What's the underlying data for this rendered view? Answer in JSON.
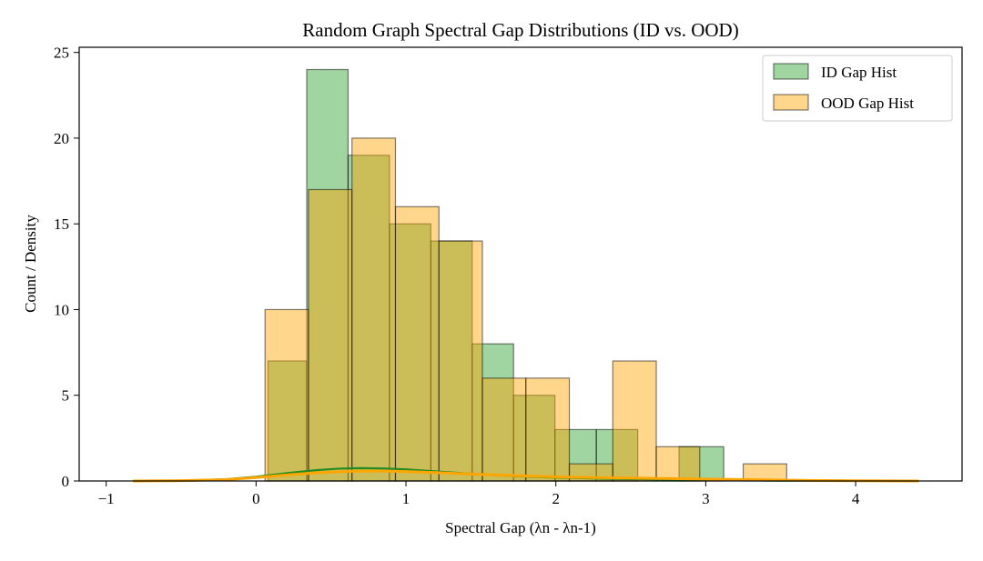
{
  "chart_data": {
    "type": "histogram",
    "title": "Random Graph Spectral Gap Distributions (ID vs. OOD)",
    "xlabel": "Spectral Gap (λn - λn-1)",
    "ylabel": "Count / Density",
    "xlim": [
      -1.18,
      4.71
    ],
    "ylim": [
      0,
      25.3
    ],
    "xticks": [
      -1,
      0,
      1,
      2,
      3,
      4
    ],
    "yticks": [
      0,
      5,
      10,
      15,
      20,
      25
    ],
    "legend_position": "top-right",
    "series": [
      {
        "name": "ID Gap Hist",
        "color": "#2ca02c",
        "bins": [
          {
            "x0": 0.08,
            "x1": 0.338,
            "count": 7
          },
          {
            "x0": 0.338,
            "x1": 0.614,
            "count": 24
          },
          {
            "x0": 0.614,
            "x1": 0.89,
            "count": 19
          },
          {
            "x0": 0.89,
            "x1": 1.166,
            "count": 15
          },
          {
            "x0": 1.166,
            "x1": 1.442,
            "count": 14
          },
          {
            "x0": 1.442,
            "x1": 1.718,
            "count": 8
          },
          {
            "x0": 1.718,
            "x1": 1.994,
            "count": 5
          },
          {
            "x0": 1.994,
            "x1": 2.27,
            "count": 3
          },
          {
            "x0": 2.27,
            "x1": 2.546,
            "count": 3
          },
          {
            "x0": 2.546,
            "x1": 2.822,
            "count": 0
          },
          {
            "x0": 2.822,
            "x1": 3.12,
            "count": 2
          }
        ],
        "kde": {
          "x": [
            -0.82,
            -0.5,
            -0.2,
            0.0,
            0.2,
            0.4,
            0.55,
            0.7,
            0.85,
            1.0,
            1.2,
            1.4,
            1.6,
            1.8,
            2.0,
            2.3,
            2.6,
            3.0,
            3.5,
            4.0,
            4.42
          ],
          "y": [
            0.0,
            0.02,
            0.1,
            0.25,
            0.45,
            0.63,
            0.72,
            0.75,
            0.73,
            0.68,
            0.56,
            0.44,
            0.34,
            0.26,
            0.2,
            0.14,
            0.1,
            0.06,
            0.02,
            0.01,
            0.0
          ]
        }
      },
      {
        "name": "OOD Gap Hist",
        "color": "#ffa500",
        "bins": [
          {
            "x0": 0.06,
            "x1": 0.35,
            "count": 10
          },
          {
            "x0": 0.35,
            "x1": 0.64,
            "count": 17
          },
          {
            "x0": 0.64,
            "x1": 0.93,
            "count": 20
          },
          {
            "x0": 0.93,
            "x1": 1.22,
            "count": 16
          },
          {
            "x0": 1.22,
            "x1": 1.51,
            "count": 14
          },
          {
            "x0": 1.51,
            "x1": 1.8,
            "count": 6
          },
          {
            "x0": 1.8,
            "x1": 2.09,
            "count": 6
          },
          {
            "x0": 2.09,
            "x1": 2.38,
            "count": 1
          },
          {
            "x0": 2.38,
            "x1": 2.67,
            "count": 7
          },
          {
            "x0": 2.67,
            "x1": 2.96,
            "count": 2
          },
          {
            "x0": 2.96,
            "x1": 3.25,
            "count": 0
          },
          {
            "x0": 3.25,
            "x1": 3.54,
            "count": 1
          }
        ],
        "kde": {
          "x": [
            -0.82,
            -0.5,
            -0.2,
            0.0,
            0.2,
            0.4,
            0.6,
            0.8,
            1.0,
            1.2,
            1.4,
            1.6,
            1.8,
            2.0,
            2.3,
            2.6,
            3.0,
            3.5,
            4.0,
            4.42
          ],
          "y": [
            0.0,
            0.02,
            0.08,
            0.2,
            0.35,
            0.48,
            0.56,
            0.58,
            0.55,
            0.49,
            0.42,
            0.35,
            0.29,
            0.24,
            0.19,
            0.16,
            0.11,
            0.05,
            0.01,
            0.0
          ]
        }
      }
    ]
  }
}
